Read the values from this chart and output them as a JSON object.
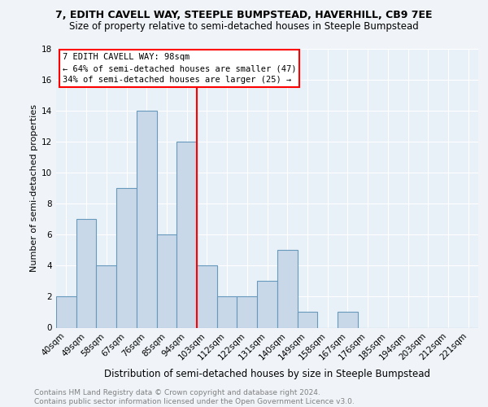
{
  "title": "7, EDITH CAVELL WAY, STEEPLE BUMPSTEAD, HAVERHILL, CB9 7EE",
  "subtitle": "Size of property relative to semi-detached houses in Steeple Bumpstead",
  "xlabel": "Distribution of semi-detached houses by size in Steeple Bumpstead",
  "ylabel": "Number of semi-detached properties",
  "bar_labels": [
    "40sqm",
    "49sqm",
    "58sqm",
    "67sqm",
    "76sqm",
    "85sqm",
    "94sqm",
    "103sqm",
    "112sqm",
    "122sqm",
    "131sqm",
    "140sqm",
    "149sqm",
    "158sqm",
    "167sqm",
    "176sqm",
    "185sqm",
    "194sqm",
    "203sqm",
    "212sqm",
    "221sqm"
  ],
  "bar_values": [
    2,
    7,
    4,
    9,
    14,
    6,
    12,
    4,
    2,
    2,
    3,
    5,
    1,
    0,
    1,
    0,
    0,
    0,
    0,
    0,
    0
  ],
  "bar_color": "#c8d8e8",
  "bar_edgecolor": "#6699bb",
  "vline_x": 6.5,
  "vline_color": "red",
  "annotation_title": "7 EDITH CAVELL WAY: 98sqm",
  "annotation_line1": "← 64% of semi-detached houses are smaller (47)",
  "annotation_line2": "34% of semi-detached houses are larger (25) →",
  "annotation_box_color": "white",
  "annotation_box_edgecolor": "red",
  "ylim": [
    0,
    18
  ],
  "yticks": [
    0,
    2,
    4,
    6,
    8,
    10,
    12,
    14,
    16,
    18
  ],
  "footer": "Contains HM Land Registry data © Crown copyright and database right 2024.\nContains public sector information licensed under the Open Government Licence v3.0.",
  "bg_color": "#f0f4f8",
  "plot_bg_color": "#e8f0f8",
  "title_fontsize": 9,
  "subtitle_fontsize": 8.5,
  "xlabel_fontsize": 8.5,
  "ylabel_fontsize": 8,
  "tick_fontsize": 7.5,
  "footer_fontsize": 6.5,
  "ann_fontsize": 7.5
}
